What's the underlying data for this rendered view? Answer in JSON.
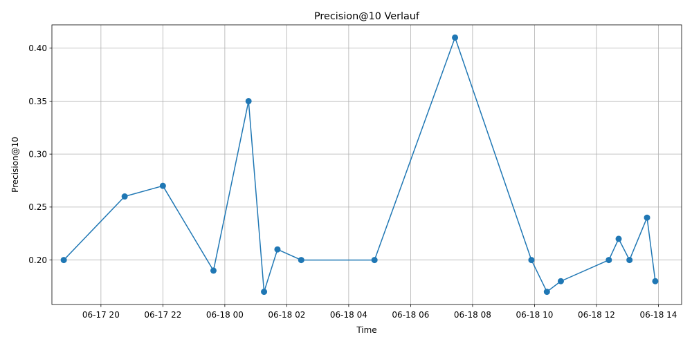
{
  "chart_data": {
    "type": "line",
    "title": "Precision@10 Verlauf",
    "xlabel": "Time",
    "ylabel": "Precision@10",
    "grid": true,
    "legend": "none",
    "color": "#1f77b4",
    "marker": "circle",
    "x_ticks": [
      {
        "t": "2024-06-17T20:00",
        "label": "06-17 20"
      },
      {
        "t": "2024-06-17T22:00",
        "label": "06-17 22"
      },
      {
        "t": "2024-06-18T00:00",
        "label": "06-18 00"
      },
      {
        "t": "2024-06-18T02:00",
        "label": "06-18 02"
      },
      {
        "t": "2024-06-18T04:00",
        "label": "06-18 04"
      },
      {
        "t": "2024-06-18T06:00",
        "label": "06-18 06"
      },
      {
        "t": "2024-06-18T08:00",
        "label": "06-18 08"
      },
      {
        "t": "2024-06-18T10:00",
        "label": "06-18 10"
      },
      {
        "t": "2024-06-18T12:00",
        "label": "06-18 12"
      },
      {
        "t": "2024-06-18T14:00",
        "label": "06-18 14"
      }
    ],
    "y_ticks": [
      {
        "v": 0.2,
        "label": "0.20"
      },
      {
        "v": 0.25,
        "label": "0.25"
      },
      {
        "v": 0.3,
        "label": "0.30"
      },
      {
        "v": 0.35,
        "label": "0.35"
      },
      {
        "v": 0.4,
        "label": "0.40"
      }
    ],
    "xlim": [
      "2024-06-17T18:25",
      "2024-06-18T14:45"
    ],
    "ylim": [
      0.158,
      0.422
    ],
    "series": [
      {
        "points": [
          {
            "x": "2024-06-17T18:48",
            "y": 0.2
          },
          {
            "x": "2024-06-17T20:46",
            "y": 0.26
          },
          {
            "x": "2024-06-17T22:00",
            "y": 0.27
          },
          {
            "x": "2024-06-17T23:38",
            "y": 0.19
          },
          {
            "x": "2024-06-18T00:46",
            "y": 0.35
          },
          {
            "x": "2024-06-18T01:16",
            "y": 0.17
          },
          {
            "x": "2024-06-18T01:42",
            "y": 0.21
          },
          {
            "x": "2024-06-18T02:28",
            "y": 0.2
          },
          {
            "x": "2024-06-18T04:50",
            "y": 0.2
          },
          {
            "x": "2024-06-18T07:26",
            "y": 0.41
          },
          {
            "x": "2024-06-18T09:54",
            "y": 0.2
          },
          {
            "x": "2024-06-18T10:24",
            "y": 0.17
          },
          {
            "x": "2024-06-18T10:51",
            "y": 0.18
          },
          {
            "x": "2024-06-18T12:24",
            "y": 0.2
          },
          {
            "x": "2024-06-18T12:43",
            "y": 0.22
          },
          {
            "x": "2024-06-18T13:04",
            "y": 0.2
          },
          {
            "x": "2024-06-18T13:38",
            "y": 0.24
          },
          {
            "x": "2024-06-18T13:54",
            "y": 0.18
          }
        ]
      }
    ]
  }
}
